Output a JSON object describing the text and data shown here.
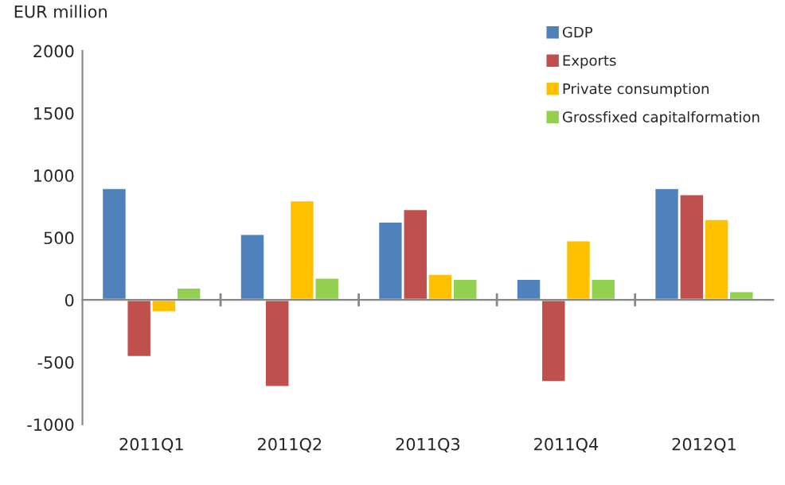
{
  "chart_data": {
    "type": "bar",
    "ylabel": "EUR million",
    "categories": [
      "2011Q1",
      "2011Q2",
      "2011Q3",
      "2011Q4",
      "2012Q1"
    ],
    "series": [
      {
        "name": "GDP",
        "color": "#4f81bd",
        "values": [
          900,
          530,
          630,
          170,
          900
        ]
      },
      {
        "name": "Exports",
        "color": "#c0504d",
        "values": [
          -460,
          -700,
          730,
          -660,
          850
        ]
      },
      {
        "name": "Private consumption",
        "color": "#ffc000",
        "values": [
          -100,
          800,
          210,
          480,
          650
        ]
      },
      {
        "name": "Grossfixed capitalformation",
        "color": "#92d050",
        "values": [
          100,
          180,
          170,
          170,
          70
        ]
      }
    ],
    "ylim": [
      -1000,
      2000
    ],
    "yticks": [
      -1000,
      -500,
      0,
      500,
      1000,
      1500,
      2000
    ],
    "legend": "top right"
  }
}
